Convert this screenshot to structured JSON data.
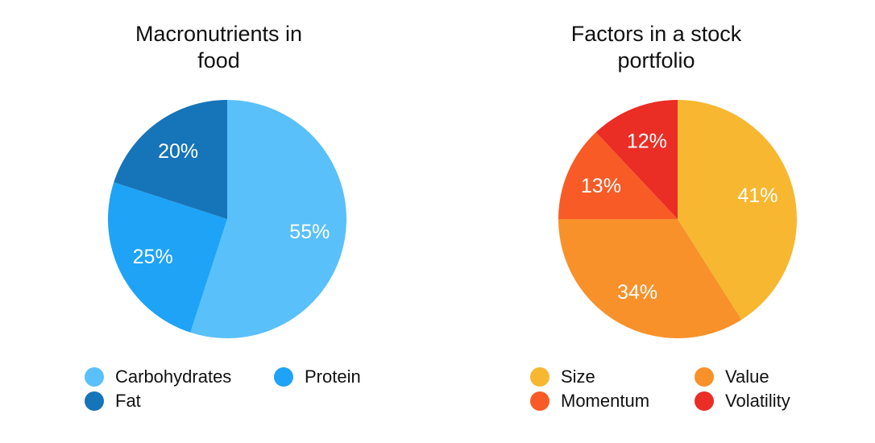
{
  "chart_data": [
    {
      "type": "pie",
      "title_lines": [
        "Macronutrients in",
        "food"
      ],
      "categories": [
        "Carbohydrates",
        "Protein",
        "Fat"
      ],
      "values": [
        55,
        25,
        20
      ],
      "labels": [
        "55%",
        "25%",
        "20%"
      ],
      "colors": [
        "#5ac0fa",
        "#1ea3f7",
        "#1674b8"
      ],
      "legend": "bottom"
    },
    {
      "type": "pie",
      "title_lines": [
        "Factors in a stock",
        "portfolio"
      ],
      "categories": [
        "Size",
        "Value",
        "Momentum",
        "Volatility"
      ],
      "values": [
        41,
        34,
        13,
        12
      ],
      "labels": [
        "41%",
        "34%",
        "13%",
        "12%"
      ],
      "colors": [
        "#f7b731",
        "#f8912a",
        "#f85b26",
        "#ea2d25"
      ],
      "legend": "bottom"
    }
  ]
}
